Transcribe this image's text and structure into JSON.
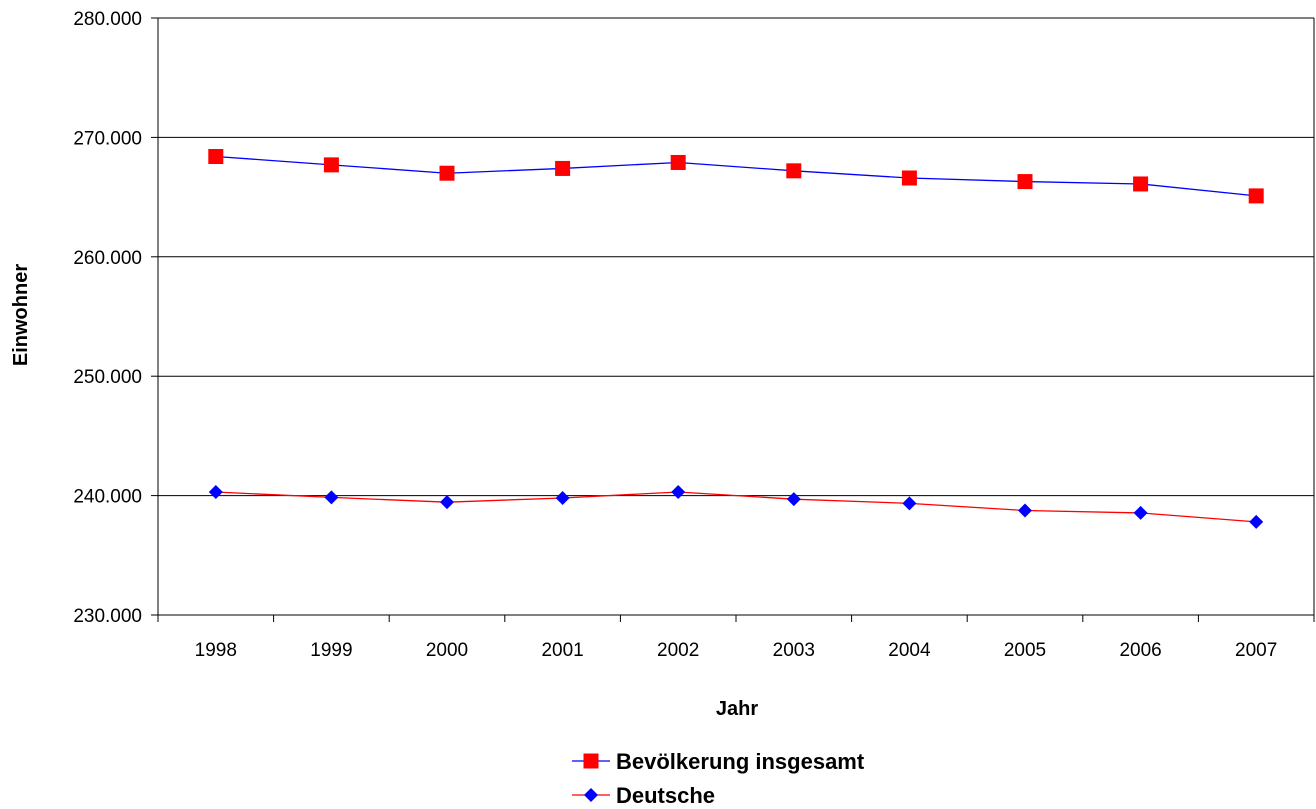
{
  "chart_data": {
    "type": "line",
    "title": "",
    "xlabel": "Jahr",
    "ylabel": "Einwohner",
    "categories": [
      "1998",
      "1999",
      "2000",
      "2001",
      "2002",
      "2003",
      "2004",
      "2005",
      "2006",
      "2007"
    ],
    "ylim": [
      230000,
      280000
    ],
    "y_ticks": [
      230000,
      240000,
      250000,
      260000,
      270000,
      280000
    ],
    "y_tick_labels": [
      "230.000",
      "240.000",
      "250.000",
      "260.000",
      "270.000",
      "280.000"
    ],
    "grid": true,
    "legend_position": "bottom",
    "series": [
      {
        "name": "Bevölkerung insgesamt",
        "values": [
          268400,
          267700,
          267000,
          267400,
          267900,
          267200,
          266600,
          266300,
          266100,
          265100
        ],
        "line_color": "#0000ff",
        "marker": "square",
        "marker_color": "#ff0000"
      },
      {
        "name": "Deutsche",
        "values": [
          240300,
          239850,
          239450,
          239800,
          240300,
          239700,
          239350,
          238750,
          238550,
          237800
        ],
        "line_color": "#ff0000",
        "marker": "diamond",
        "marker_color": "#0000ff"
      }
    ]
  }
}
